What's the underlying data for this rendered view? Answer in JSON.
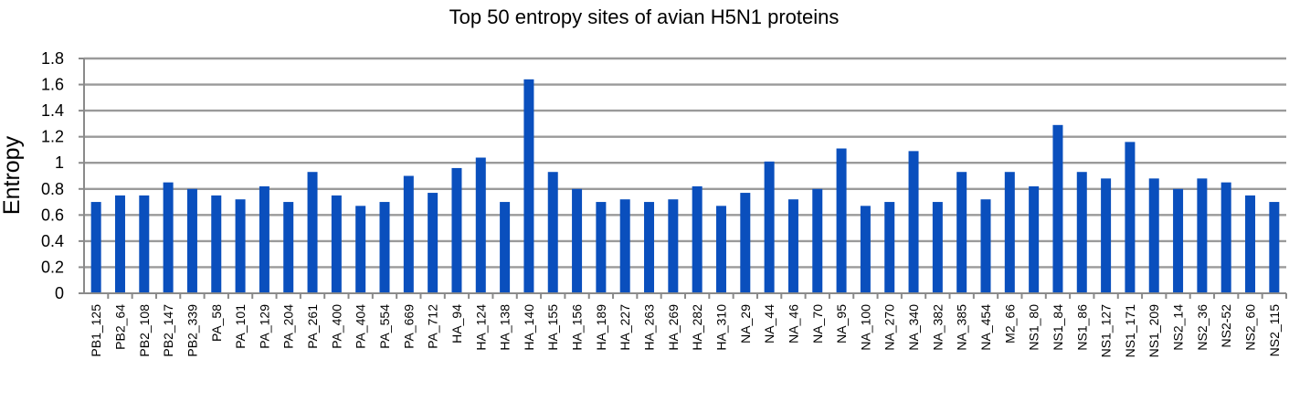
{
  "chart_data": {
    "type": "bar",
    "title": "Top 50 entropy sites of avian H5N1 proteins",
    "xlabel": "",
    "ylabel": "Entropy",
    "ylim": [
      0,
      1.8
    ],
    "yticks": [
      "0",
      "0.2",
      "0.4",
      "0.6",
      "0.8",
      "1",
      "1.2",
      "1.4",
      "1.6",
      "1.8"
    ],
    "grid": true,
    "bar_color": "#0a4fbd",
    "categories": [
      "PB1_125",
      "PB2_64",
      "PB2_108",
      "PB2_147",
      "PB2_339",
      "PA_58",
      "PA_101",
      "PA_129",
      "PA_204",
      "PA_261",
      "PA_400",
      "PA_404",
      "PA_554",
      "PA_669",
      "PA_712",
      "HA_94",
      "HA_124",
      "HA_138",
      "HA_140",
      "HA_155",
      "HA_156",
      "HA_189",
      "HA_227",
      "HA_263",
      "HA_269",
      "HA_282",
      "HA_310",
      "NA_29",
      "NA_44",
      "NA_46",
      "NA_70",
      "NA_95",
      "NA_100",
      "NA_270",
      "NA_340",
      "NA_382",
      "NA_385",
      "NA_454",
      "M2_66",
      "NS1_80",
      "NS1_84",
      "NS1_86",
      "NS1_127",
      "NS1_171",
      "NS1_209",
      "NS2_14",
      "NS2_36",
      "NS2-52",
      "NS2_60",
      "NS2_115"
    ],
    "values": [
      0.7,
      0.75,
      0.75,
      0.85,
      0.8,
      0.75,
      0.72,
      0.82,
      0.7,
      0.93,
      0.75,
      0.67,
      0.7,
      0.9,
      0.77,
      0.96,
      1.04,
      0.7,
      1.64,
      0.93,
      0.8,
      0.7,
      0.72,
      0.7,
      0.72,
      0.82,
      0.67,
      0.77,
      1.01,
      0.72,
      0.8,
      1.11,
      0.67,
      0.7,
      1.09,
      0.7,
      0.93,
      0.72,
      0.93,
      0.82,
      1.29,
      0.93,
      0.88,
      1.16,
      0.88,
      0.8,
      0.88,
      0.85,
      0.75,
      0.7
    ]
  }
}
